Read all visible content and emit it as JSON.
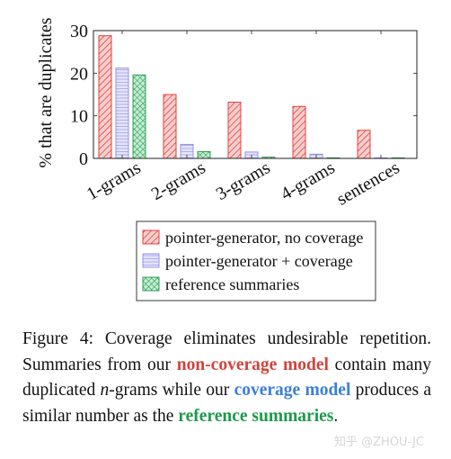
{
  "chart_data": {
    "type": "bar",
    "categories": [
      "1-grams",
      "2-grams",
      "3-grams",
      "4-grams",
      "sentences"
    ],
    "series": [
      {
        "name": "pointer-generator, no coverage",
        "values": [
          28.8,
          15.0,
          13.2,
          12.2,
          6.6
        ],
        "color": "#e0312d",
        "fill": "#f7cfcc",
        "pattern": "diagonal"
      },
      {
        "name": "pointer-generator + coverage",
        "values": [
          21.2,
          3.3,
          1.5,
          1.0,
          0.1
        ],
        "color": "#8a8ae0",
        "fill": "#e3e4fb",
        "pattern": "horizontal"
      },
      {
        "name": "reference summaries",
        "values": [
          19.6,
          1.6,
          0.3,
          0.1,
          0.1
        ],
        "color": "#1f9a46",
        "fill": "#c5ecd4",
        "pattern": "crosshatch"
      }
    ],
    "ylabel": "% that are duplicates",
    "ylim": [
      0,
      30
    ],
    "yticks": [
      0,
      10,
      20,
      30
    ],
    "legend_position": "bottom"
  },
  "caption": {
    "part1": "Figure 4:  Coverage eliminates undesirable repetition. Summaries from our ",
    "noncov": "non-coverage model",
    "part2": " contain many duplicated ",
    "n": "n",
    "part3": "-grams while our ",
    "cov": "coverage model",
    "part4": " produces a similar number as the ",
    "ref": "reference summaries",
    "part5": "."
  },
  "watermark": "知乎 @ZHOU-JC"
}
